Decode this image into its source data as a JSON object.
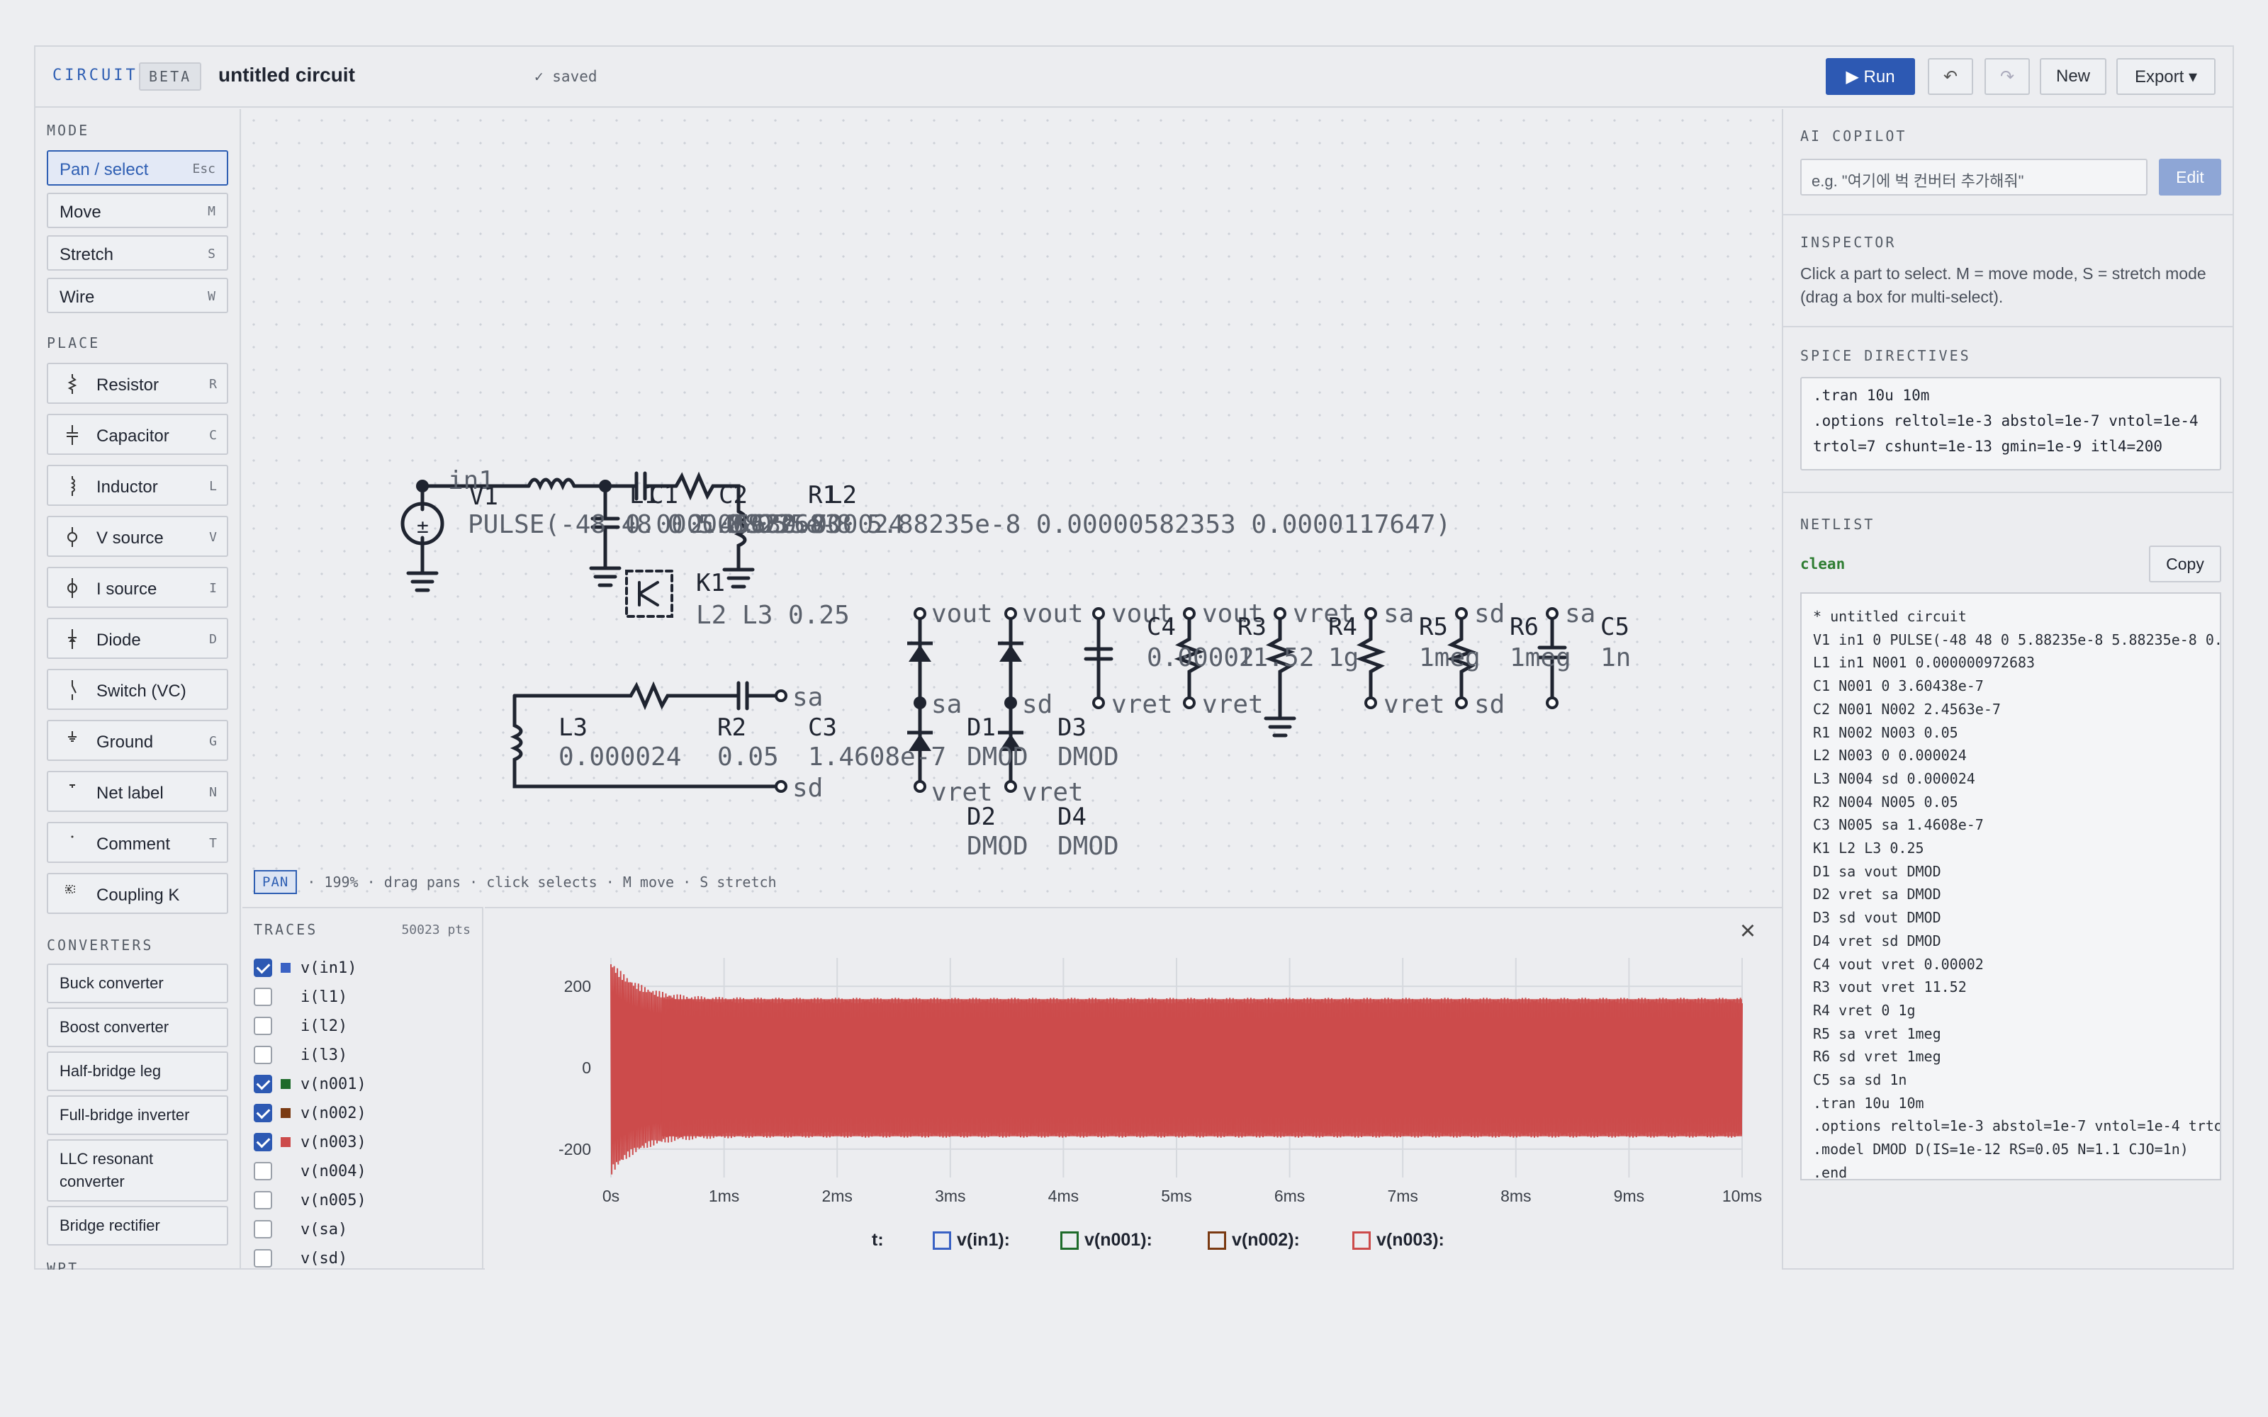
{
  "header": {
    "brand": "CIRCUIT",
    "beta": "BETA",
    "title": "untitled circuit",
    "saved": "✓ saved",
    "run": "▶ Run",
    "undo": "↶",
    "redo": "↷",
    "new": "New",
    "export": "Export ▾"
  },
  "left": {
    "mode_title": "MODE",
    "modes": [
      {
        "label": "Pan / select",
        "key": "Esc"
      },
      {
        "label": "Move",
        "key": "M"
      },
      {
        "label": "Stretch",
        "key": "S"
      },
      {
        "label": "Wire",
        "key": "W"
      }
    ],
    "place_title": "PLACE",
    "places": [
      {
        "label": "Resistor",
        "key": "R",
        "icon": "resistor-icon"
      },
      {
        "label": "Capacitor",
        "key": "C",
        "icon": "capacitor-icon"
      },
      {
        "label": "Inductor",
        "key": "L",
        "icon": "inductor-icon"
      },
      {
        "label": "V source",
        "key": "V",
        "icon": "vsource-icon"
      },
      {
        "label": "I source",
        "key": "I",
        "icon": "isource-icon"
      },
      {
        "label": "Diode",
        "key": "D",
        "icon": "diode-icon"
      },
      {
        "label": "Switch (VC)",
        "key": "",
        "icon": "switch-icon"
      },
      {
        "label": "Ground",
        "key": "G",
        "icon": "ground-icon"
      },
      {
        "label": "Net label",
        "key": "N",
        "icon": "net-label-icon"
      },
      {
        "label": "Comment",
        "key": "T",
        "icon": "comment-icon"
      },
      {
        "label": "Coupling K",
        "key": "",
        "icon": "coupling-icon"
      }
    ],
    "converters_title": "CONVERTERS",
    "converters": [
      "Buck converter",
      "Boost converter",
      "Half-bridge leg",
      "Full-bridge inverter",
      "LLC resonant converter",
      "Bridge rectifier"
    ],
    "next_title": "WPT"
  },
  "canvas": {
    "status_badge": "PAN",
    "status_text": "· 199% · drag pans · click selects · M move · S stretch",
    "labels": {
      "in1": "in1",
      "V1": "V1",
      "V1_val": "PULSE(-48 48 0 5.88235e-8 5.88235e-8 0.00000582353 0.0000117647)",
      "L1": "L1",
      "C1": "C1",
      "C2": "C2",
      "R1": "R1",
      "L2": "L2",
      "L1_val": "0.000000972683",
      "C1_val": "3.60438e-7",
      "C2_val": "2.4563e-7",
      "R1_val": "0.05",
      "L2_val": "0.000024",
      "K1": "K1",
      "K1_val": "L2 L3 0.25",
      "L3": "L3",
      "L3_val": "0.000024",
      "R2": "R2",
      "R2_val": "0.05",
      "C3": "C3",
      "C3_val": "1.4608e-7",
      "sa": "sa",
      "sd": "sd",
      "D1": "D1",
      "D2": "D2",
      "D3": "D3",
      "D4": "D4",
      "DMOD": "DMOD",
      "vout": "vout",
      "vret": "vret",
      "C4": "C4",
      "C4_val": "0.00002",
      "R3": "R3",
      "R3_val": "11.52",
      "R4": "R4",
      "R4_val": "1g",
      "R5": "R5",
      "R5_val": "1meg",
      "R6": "R6",
      "R6_val": "1meg",
      "C5": "C5",
      "C5_val": "1n",
      "K": "K"
    }
  },
  "traces": {
    "title": "TRACES",
    "points": "50023 pts",
    "items": [
      {
        "name": "v(in1)",
        "checked": true,
        "color": "#3a62c4"
      },
      {
        "name": "i(l1)",
        "checked": false,
        "color": ""
      },
      {
        "name": "i(l2)",
        "checked": false,
        "color": ""
      },
      {
        "name": "i(l3)",
        "checked": false,
        "color": ""
      },
      {
        "name": "v(n001)",
        "checked": true,
        "color": "#1e6b2a"
      },
      {
        "name": "v(n002)",
        "checked": true,
        "color": "#7a3a12"
      },
      {
        "name": "v(n003)",
        "checked": true,
        "color": "#cc4b4b"
      },
      {
        "name": "v(n004)",
        "checked": false,
        "color": ""
      },
      {
        "name": "v(n005)",
        "checked": false,
        "color": ""
      },
      {
        "name": "v(sa)",
        "checked": false,
        "color": ""
      },
      {
        "name": "v(sd)",
        "checked": false,
        "color": ""
      }
    ]
  },
  "chart_data": {
    "type": "line",
    "x_tick_labels": [
      "0s",
      "1ms",
      "2ms",
      "3ms",
      "4ms",
      "5ms",
      "6ms",
      "7ms",
      "8ms",
      "9ms",
      "10ms"
    ],
    "y_tick_labels": [
      "200",
      "0",
      "-200"
    ],
    "xlim": [
      0,
      10
    ],
    "ylim": [
      -270,
      270
    ],
    "series": [
      {
        "name": "v(n003)",
        "color": "#cc4b4b",
        "envelope_max": 265,
        "settled_amplitude": 172
      }
    ],
    "legend_t": "t:",
    "legend": [
      {
        "name": "v(in1):",
        "color": "#3a62c4"
      },
      {
        "name": "v(n001):",
        "color": "#1e6b2a"
      },
      {
        "name": "v(n002):",
        "color": "#7a3a12"
      },
      {
        "name": "v(n003):",
        "color": "#cc4b4b"
      }
    ],
    "close": "×"
  },
  "right": {
    "copilot_title": "AI COPILOT",
    "copilot_placeholder": "e.g. \"여기에 벅 컨버터 추가해줘\"",
    "edit": "Edit",
    "inspector_title": "INSPECTOR",
    "inspector_text": "Click a part to select. M = move mode, S = stretch mode (drag a box for multi-select).",
    "directives_title": "SPICE DIRECTIVES",
    "directives": ".tran 10u 10m\n.options reltol=1e-3 abstol=1e-7 vntol=1e-4 trtol=7 cshunt=1e-13 gmin=1e-9 itl4=200",
    "netlist_title": "NETLIST",
    "netlist_status": "clean",
    "copy": "Copy",
    "netlist": [
      "* untitled circuit",
      "V1 in1 0 PULSE(-48 48 0 5.88235e-8 5.88235e-8 0.",
      "L1 in1 N001 0.000000972683",
      "C1 N001 0 3.60438e-7",
      "C2 N001 N002 2.4563e-7",
      "R1 N002 N003 0.05",
      "L2 N003 0 0.000024",
      "L3 N004 sd 0.000024",
      "R2 N004 N005 0.05",
      "C3 N005 sa 1.4608e-7",
      "K1 L2 L3 0.25",
      "D1 sa vout DMOD",
      "D2 vret sa DMOD",
      "D3 sd vout DMOD",
      "D4 vret sd DMOD",
      "C4 vout vret 0.00002",
      "R3 vout vret 11.52",
      "R4 vret 0 1g",
      "R5 sa vret 1meg",
      "R6 sd vret 1meg",
      "C5 sa sd 1n",
      ".tran 10u 10m",
      ".options reltol=1e-3 abstol=1e-7 vntol=1e-4 trtol",
      ".model DMOD D(IS=1e-12 RS=0.05 N=1.1 CJO=1n)",
      ".end"
    ]
  }
}
